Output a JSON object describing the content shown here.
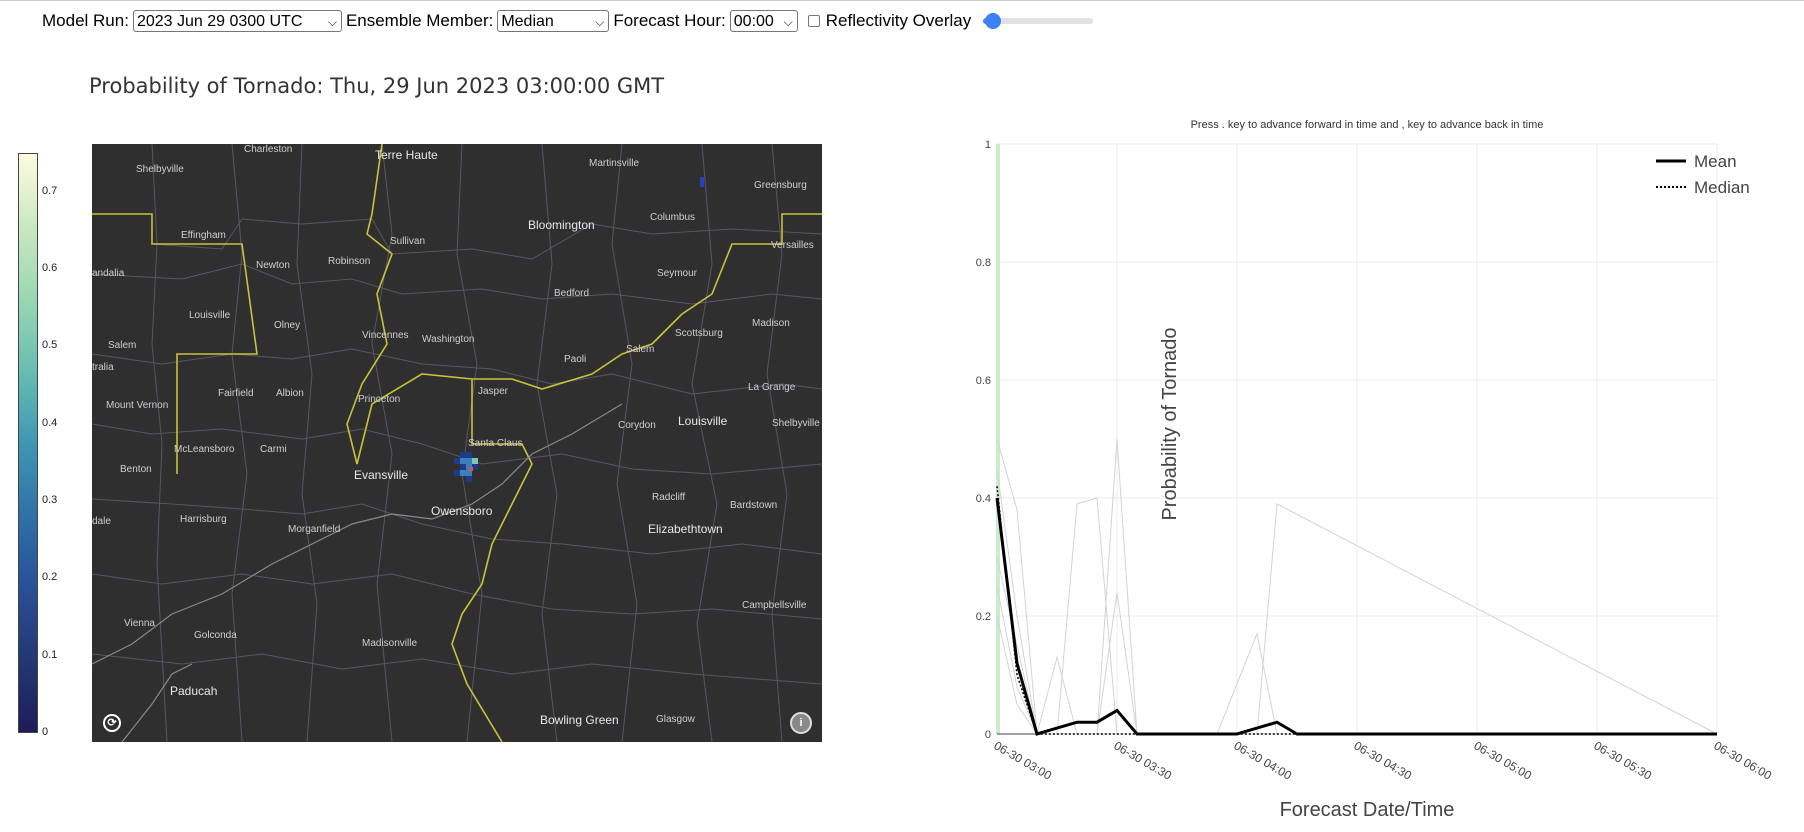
{
  "toolbar": {
    "model_run_label": "Model Run:",
    "model_run_value": "2023 Jun 29 0300 UTC",
    "ensemble_label": "Ensemble Member:",
    "ensemble_value": "Median",
    "forecast_hour_label": "Forecast Hour:",
    "forecast_hour_value": "00:00",
    "reflectivity_label": "Reflectivity Overlay",
    "reflectivity_checked": false,
    "slider_value": 0
  },
  "map": {
    "title": "Probability of Tornado: Thu, 29 Jun 2023 03:00:00 GMT",
    "colorbar_ticks": [
      "0",
      "0.1",
      "0.2",
      "0.3",
      "0.4",
      "0.5",
      "0.6",
      "0.7"
    ],
    "cities": [
      "Charleston",
      "Terre Haute",
      "Martinsville",
      "Greensburg",
      "Shelbyville",
      "Columbus",
      "Effingham",
      "Sullivan",
      "Bloomington",
      "Versailles",
      "andalia",
      "Newton",
      "Robinson",
      "Seymour",
      "Louisville",
      "Olney",
      "Bedford",
      "Madison",
      "Salem",
      "Vincennes",
      "Washington",
      "Scottsburg",
      "tralia",
      "Paoli",
      "Salem",
      "Fairfield",
      "Albion",
      "Jasper",
      "La Grange",
      "Mount Vernon",
      "Princeton",
      "Corydon",
      "Louisville",
      "Shelbyville",
      "Santa Claus",
      "McLeansboro",
      "Carmi",
      "Benton",
      "Evansville",
      "Radcliff",
      "Bardstown",
      "Owensboro",
      "Harrisburg",
      "dale",
      "Morganfield",
      "Elizabethtown",
      "Vienna",
      "Golconda",
      "Madisonville",
      "Campbellsville",
      "Paducah",
      "Bowling Green",
      "Glasgow"
    ],
    "attribution_icon": "info-icon",
    "logo_icon": "mapbox-logo-icon"
  },
  "chart": {
    "instructions": "Press . key to advance forward in time and , key to advance back in time",
    "legend_mean": "Mean",
    "legend_median": "Median"
  },
  "chart_data": {
    "type": "line",
    "xlabel": "Forecast Date/Time",
    "ylabel": "Probability of Tornado",
    "ylim": [
      0,
      1
    ],
    "yticks": [
      "0",
      "0.2",
      "0.4",
      "0.6",
      "0.8",
      "1"
    ],
    "xlim": [
      "06-30 03:00",
      "06-30 06:00"
    ],
    "xticks": [
      "06-30 03:00",
      "06-30 03:30",
      "06-30 04:00",
      "06-30 04:30",
      "06-30 05:00",
      "06-30 05:30",
      "06-30 06:00"
    ],
    "grid": true,
    "legend_position": "top-right",
    "series": [
      {
        "name": "Mean",
        "style": "solid",
        "color": "#000000",
        "x": [
          "06-30 03:00",
          "06-30 03:05",
          "06-30 03:10",
          "06-30 03:15",
          "06-30 03:20",
          "06-30 03:25",
          "06-30 03:30",
          "06-30 03:35",
          "06-30 03:40",
          "06-30 03:45",
          "06-30 03:50",
          "06-30 03:55",
          "06-30 04:00",
          "06-30 04:05",
          "06-30 04:10",
          "06-30 04:15",
          "06-30 06:00"
        ],
        "values": [
          0.4,
          0.12,
          0.0,
          0.01,
          0.02,
          0.02,
          0.04,
          0.0,
          0.0,
          0.0,
          0.0,
          0.0,
          0.0,
          0.01,
          0.02,
          0.0,
          0.0
        ]
      },
      {
        "name": "Median",
        "style": "dotted",
        "color": "#000000",
        "x": [
          "06-30 03:00",
          "06-30 03:05",
          "06-30 03:10",
          "06-30 06:00"
        ],
        "values": [
          0.42,
          0.1,
          0.0,
          0.0
        ]
      }
    ],
    "members": [
      {
        "color": "#d3d3d3",
        "x": [
          "06-30 03:00",
          "06-30 03:05",
          "06-30 03:10",
          "06-30 03:15",
          "06-30 03:20",
          "06-30 03:25",
          "06-30 03:30",
          "06-30 03:35",
          "06-30 06:00"
        ],
        "values": [
          0.5,
          0.38,
          0.0,
          0.0,
          0.39,
          0.4,
          0.0,
          0.0,
          0.0
        ]
      },
      {
        "color": "#d3d3d3",
        "x": [
          "06-30 03:00",
          "06-30 03:05",
          "06-30 03:10",
          "06-30 03:15",
          "06-30 03:20",
          "06-30 03:25",
          "06-30 03:30",
          "06-30 03:35",
          "06-30 06:00"
        ],
        "values": [
          0.45,
          0.2,
          0.0,
          0.13,
          0.0,
          0.0,
          0.5,
          0.0,
          0.0
        ]
      },
      {
        "color": "#d3d3d3",
        "x": [
          "06-30 03:00",
          "06-30 03:05",
          "06-30 03:10",
          "06-30 03:25",
          "06-30 03:30",
          "06-30 03:35",
          "06-30 06:00"
        ],
        "values": [
          0.3,
          0.15,
          0.0,
          0.0,
          0.24,
          0.0,
          0.0
        ]
      },
      {
        "color": "#d3d3d3",
        "x": [
          "06-30 03:00",
          "06-30 03:05",
          "06-30 03:10",
          "06-30 03:55",
          "06-30 04:05",
          "06-30 04:10",
          "06-30 06:00"
        ],
        "values": [
          0.2,
          0.05,
          0.0,
          0.0,
          0.0,
          0.39,
          0.0
        ]
      },
      {
        "color": "#d3d3d3",
        "x": [
          "06-30 03:00",
          "06-30 03:05",
          "06-30 03:10",
          "06-30 03:55",
          "06-30 04:05",
          "06-30 04:10",
          "06-30 06:00"
        ],
        "values": [
          0.25,
          0.08,
          0.0,
          0.0,
          0.17,
          0.0,
          0.0
        ]
      }
    ]
  }
}
